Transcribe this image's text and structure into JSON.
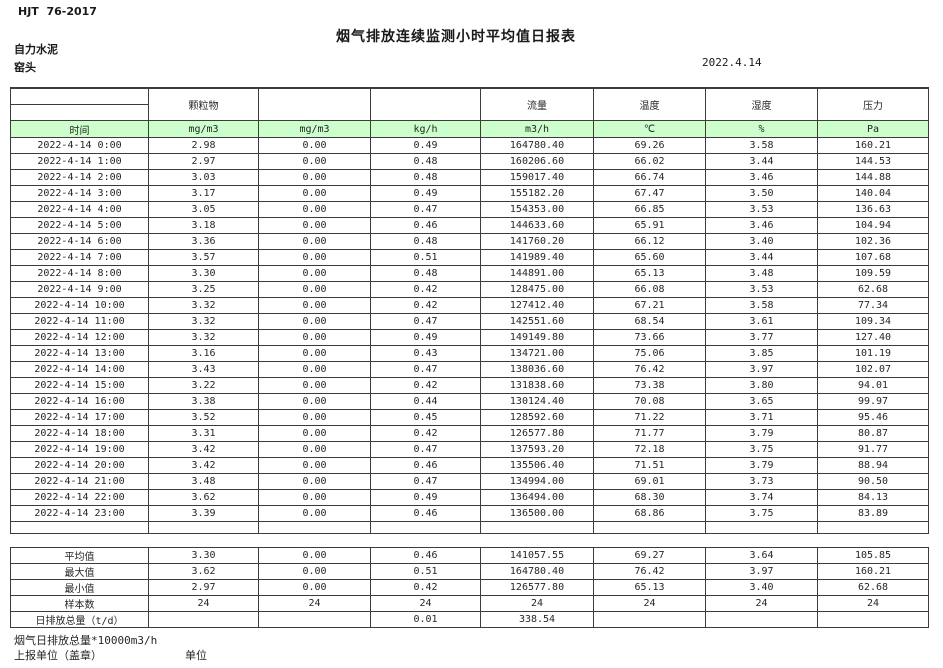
{
  "page": {
    "standard": "HJT  76-2017",
    "company": "自力水泥",
    "station": "窑头",
    "title": "烟气排放连续监测小时平均值日报表",
    "date": "2022.4.14"
  },
  "colors": {
    "header_green": "#ccffcc",
    "border": "#3c3c3c"
  },
  "table": {
    "group_headers": [
      "",
      "颗粒物",
      "",
      "",
      "流量",
      "温度",
      "湿度",
      "压力"
    ],
    "unit_row": [
      "时间",
      "mg/m3",
      "mg/m3",
      "kg/h",
      "m3/h",
      "℃",
      "%",
      "Pa"
    ],
    "rows": [
      {
        "time": "2022-4-14 0:00",
        "values": [
          "2.98",
          "0.00",
          "0.49",
          "164780.40",
          "69.26",
          "3.58",
          "160.21"
        ]
      },
      {
        "time": "2022-4-14 1:00",
        "values": [
          "2.97",
          "0.00",
          "0.48",
          "160206.60",
          "66.02",
          "3.44",
          "144.53"
        ]
      },
      {
        "time": "2022-4-14 2:00",
        "values": [
          "3.03",
          "0.00",
          "0.48",
          "159017.40",
          "66.74",
          "3.46",
          "144.88"
        ]
      },
      {
        "time": "2022-4-14 3:00",
        "values": [
          "3.17",
          "0.00",
          "0.49",
          "155182.20",
          "67.47",
          "3.50",
          "140.04"
        ]
      },
      {
        "time": "2022-4-14 4:00",
        "values": [
          "3.05",
          "0.00",
          "0.47",
          "154353.00",
          "66.85",
          "3.53",
          "136.63"
        ]
      },
      {
        "time": "2022-4-14 5:00",
        "values": [
          "3.18",
          "0.00",
          "0.46",
          "144633.60",
          "65.91",
          "3.46",
          "104.94"
        ]
      },
      {
        "time": "2022-4-14 6:00",
        "values": [
          "3.36",
          "0.00",
          "0.48",
          "141760.20",
          "66.12",
          "3.40",
          "102.36"
        ]
      },
      {
        "time": "2022-4-14 7:00",
        "values": [
          "3.57",
          "0.00",
          "0.51",
          "141989.40",
          "65.60",
          "3.44",
          "107.68"
        ]
      },
      {
        "time": "2022-4-14 8:00",
        "values": [
          "3.30",
          "0.00",
          "0.48",
          "144891.00",
          "65.13",
          "3.48",
          "109.59"
        ]
      },
      {
        "time": "2022-4-14 9:00",
        "values": [
          "3.25",
          "0.00",
          "0.42",
          "128475.00",
          "66.08",
          "3.53",
          "62.68"
        ]
      },
      {
        "time": "2022-4-14 10:00",
        "values": [
          "3.32",
          "0.00",
          "0.42",
          "127412.40",
          "67.21",
          "3.58",
          "77.34"
        ]
      },
      {
        "time": "2022-4-14 11:00",
        "values": [
          "3.32",
          "0.00",
          "0.47",
          "142551.60",
          "68.54",
          "3.61",
          "109.34"
        ]
      },
      {
        "time": "2022-4-14 12:00",
        "values": [
          "3.32",
          "0.00",
          "0.49",
          "149149.80",
          "73.66",
          "3.77",
          "127.40"
        ]
      },
      {
        "time": "2022-4-14 13:00",
        "values": [
          "3.16",
          "0.00",
          "0.43",
          "134721.00",
          "75.06",
          "3.85",
          "101.19"
        ]
      },
      {
        "time": "2022-4-14 14:00",
        "values": [
          "3.43",
          "0.00",
          "0.47",
          "138036.60",
          "76.42",
          "3.97",
          "102.07"
        ]
      },
      {
        "time": "2022-4-14 15:00",
        "values": [
          "3.22",
          "0.00",
          "0.42",
          "131838.60",
          "73.38",
          "3.80",
          "94.01"
        ]
      },
      {
        "time": "2022-4-14 16:00",
        "values": [
          "3.38",
          "0.00",
          "0.44",
          "130124.40",
          "70.08",
          "3.65",
          "99.97"
        ]
      },
      {
        "time": "2022-4-14 17:00",
        "values": [
          "3.52",
          "0.00",
          "0.45",
          "128592.60",
          "71.22",
          "3.71",
          "95.46"
        ]
      },
      {
        "time": "2022-4-14 18:00",
        "values": [
          "3.31",
          "0.00",
          "0.42",
          "126577.80",
          "71.77",
          "3.79",
          "80.87"
        ]
      },
      {
        "time": "2022-4-14 19:00",
        "values": [
          "3.42",
          "0.00",
          "0.47",
          "137593.20",
          "72.18",
          "3.75",
          "91.77"
        ]
      },
      {
        "time": "2022-4-14 20:00",
        "values": [
          "3.42",
          "0.00",
          "0.46",
          "135506.40",
          "71.51",
          "3.79",
          "88.94"
        ]
      },
      {
        "time": "2022-4-14 21:00",
        "values": [
          "3.48",
          "0.00",
          "0.47",
          "134994.00",
          "69.01",
          "3.73",
          "90.50"
        ]
      },
      {
        "time": "2022-4-14 22:00",
        "values": [
          "3.62",
          "0.00",
          "0.49",
          "136494.00",
          "68.30",
          "3.74",
          "84.13"
        ]
      },
      {
        "time": "2022-4-14 23:00",
        "values": [
          "3.39",
          "0.00",
          "0.46",
          "136500.00",
          "68.86",
          "3.75",
          "83.89"
        ]
      }
    ],
    "summary": [
      {
        "label": "平均值",
        "values": [
          "3.30",
          "0.00",
          "0.46",
          "141057.55",
          "69.27",
          "3.64",
          "105.85"
        ]
      },
      {
        "label": "最大值",
        "values": [
          "3.62",
          "0.00",
          "0.51",
          "164780.40",
          "76.42",
          "3.97",
          "160.21"
        ]
      },
      {
        "label": "最小值",
        "values": [
          "2.97",
          "0.00",
          "0.42",
          "126577.80",
          "65.13",
          "3.40",
          "62.68"
        ]
      },
      {
        "label": "样本数",
        "values": [
          "24",
          "24",
          "24",
          "24",
          "24",
          "24",
          "24"
        ]
      },
      {
        "label": "日排放总量（t/d）",
        "values": [
          "",
          "",
          "0.01",
          "338.54",
          "",
          "",
          ""
        ]
      }
    ]
  },
  "footer": {
    "note": "烟气日排放总量*10000m3/h",
    "report_unit_label": "上报单位（盖章）",
    "unit_label": "单位"
  }
}
